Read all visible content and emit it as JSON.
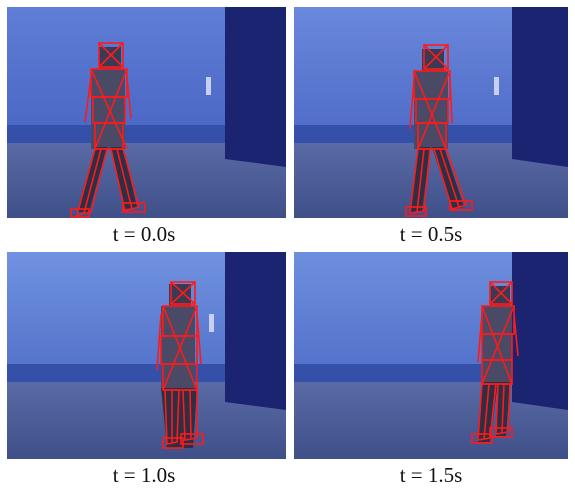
{
  "frames": [
    {
      "caption": "t = 0.0s"
    },
    {
      "caption": "t = 0.5s"
    },
    {
      "caption": "t = 1.0s"
    },
    {
      "caption": "t = 1.5s"
    }
  ],
  "colors": {
    "wall": "#3e5cc0",
    "wall_light": "#6a86d8",
    "floor": "#4c5e9a",
    "door": "#1a2470",
    "skeleton": "#ff1a1a",
    "person": "#3a3a55"
  }
}
